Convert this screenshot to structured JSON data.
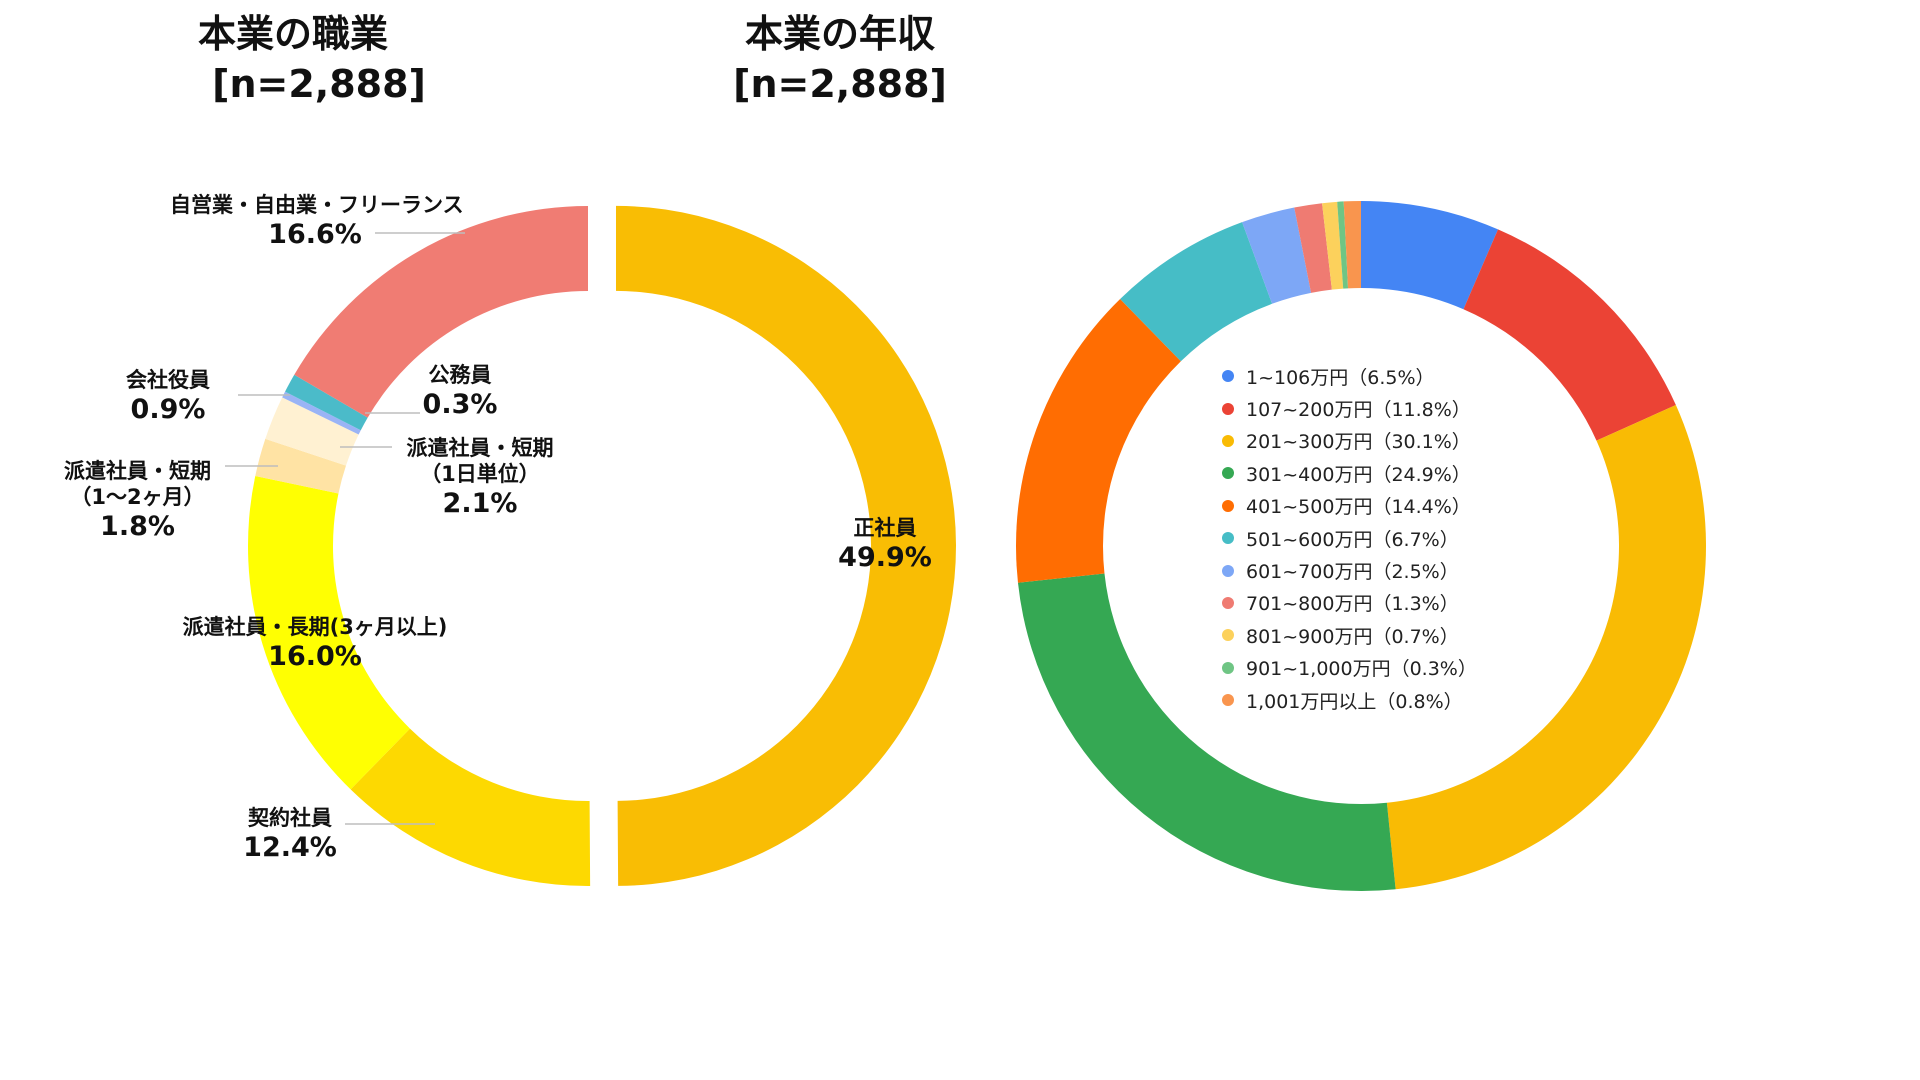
{
  "chart_data": [
    {
      "type": "pie",
      "title": "本業の職業",
      "subtitle": "[n=2,888]",
      "donut": true,
      "categories": [
        "正社員",
        "契約社員",
        "派遣社員・長期(3ヶ月以上)",
        "派遣社員・短期\n（1〜2ヶ月）",
        "派遣社員・短期\n（1日単位）",
        "公務員",
        "会社役員",
        "自営業・自由業・フリーランス"
      ],
      "values": [
        49.9,
        12.4,
        16.0,
        1.8,
        2.1,
        0.3,
        0.9,
        16.6
      ],
      "value_labels": [
        "49.9%",
        "12.4%",
        "16.0%",
        "1.8%",
        "2.1%",
        "0.3%",
        "0.9%",
        "16.6%"
      ],
      "colors": [
        "#F9BD04",
        "#FDD901",
        "#FFFF02",
        "#FFE3A4",
        "#FFF1D2",
        "#9AB4F5",
        "#4BBBC9",
        "#F07C73"
      ],
      "legend": "none"
    },
    {
      "type": "pie",
      "title": "本業の年収",
      "subtitle": "[n=2,888]",
      "donut": true,
      "categories": [
        "1~106万円",
        "107~200万円",
        "201~300万円",
        "301~400万円",
        "401~500万円",
        "501~600万円",
        "601~700万円",
        "701~800万円",
        "801~900万円",
        "901~1,000万円",
        "1,001万円以上"
      ],
      "values": [
        6.5,
        11.8,
        30.1,
        24.9,
        14.4,
        6.7,
        2.5,
        1.3,
        0.7,
        0.3,
        0.8
      ],
      "legend_labels": [
        "1~106万円（6.5%）",
        "107~200万円（11.8%）",
        "201~300万円（30.1%）",
        "301~400万円（24.9%）",
        "401~500万円（14.4%）",
        "501~600万円（6.7%）",
        "601~700万円（2.5%）",
        "701~800万円（1.3%）",
        "801~900万円（0.7%）",
        "901~1,000万円（0.3%）",
        "1,001万円以上（0.8%）"
      ],
      "colors": [
        "#4485F4",
        "#EB4335",
        "#F9BB04",
        "#35A853",
        "#FF6D02",
        "#46BDC6",
        "#7DA7F6",
        "#EF7B72",
        "#FCD15C",
        "#6FC584",
        "#F9954E"
      ],
      "legend": "inside"
    }
  ]
}
